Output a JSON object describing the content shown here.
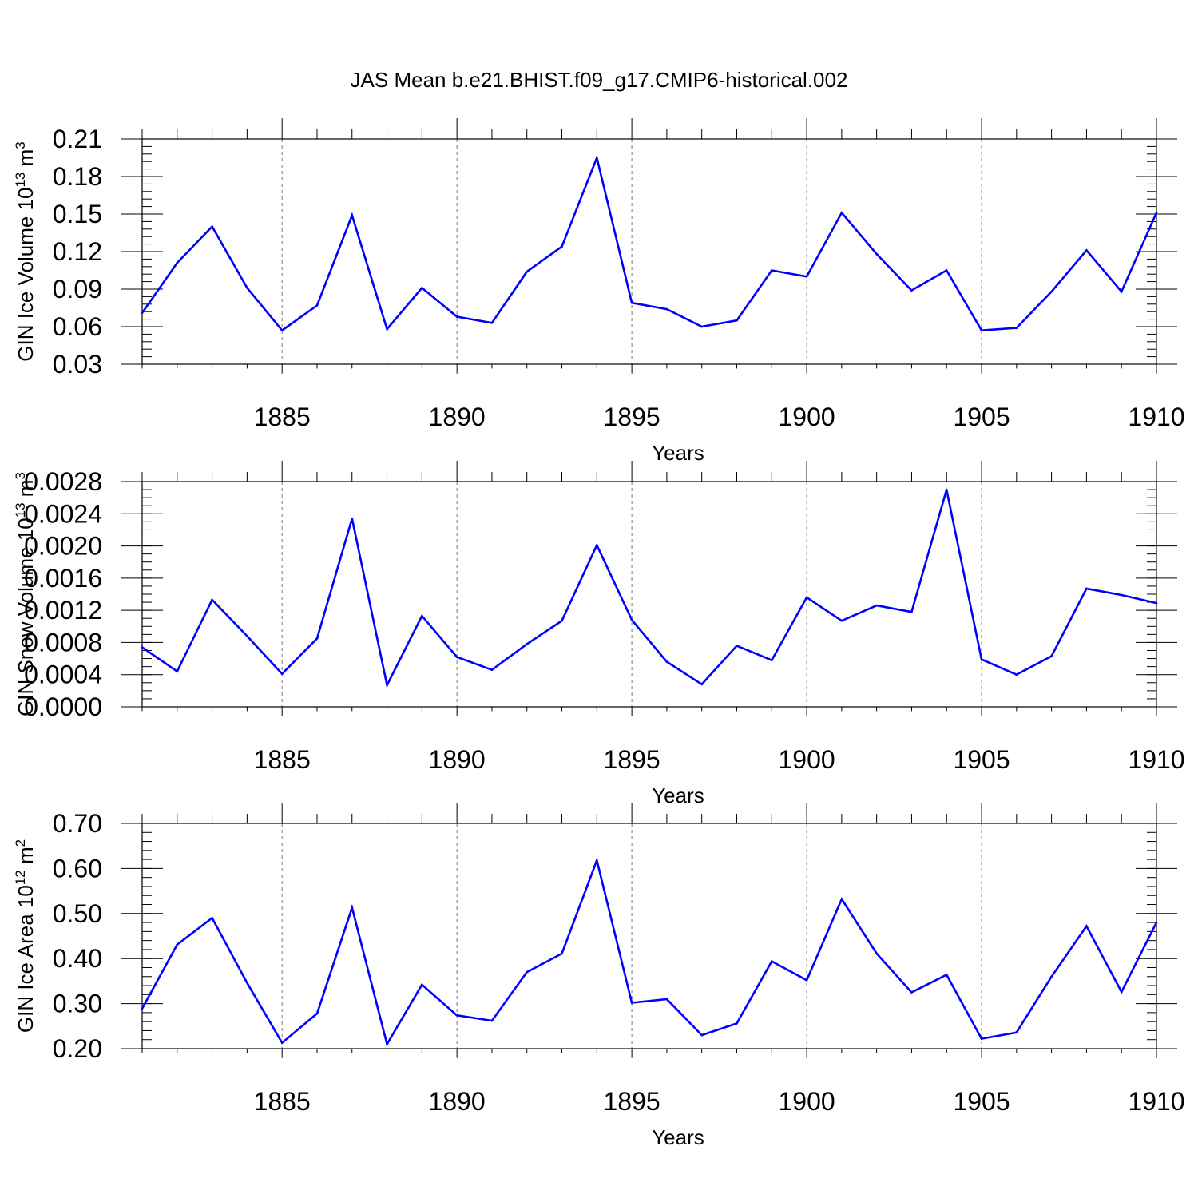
{
  "figure_title": "JAS Mean b.e21.BHIST.f09_g17.CMIP6-historical.002",
  "line_color": "#0000ff",
  "chart_data": [
    {
      "type": "line",
      "title": "JAS Mean b.e21.BHIST.f09_g17.CMIP6-historical.002",
      "ylabel": "GIN Ice Volume",
      "ylabel_unit_base": "10",
      "ylabel_unit_exp": "13",
      "ylabel_unit_tail": "m",
      "ylabel_unit_tail_exp": "3",
      "xlabel": "Years",
      "xlim": [
        1881,
        1910
      ],
      "ylim": [
        0.03,
        0.21
      ],
      "yticks": [
        "0.03",
        "0.06",
        "0.09",
        "0.12",
        "0.15",
        "0.18",
        "0.21"
      ],
      "ytick_values": [
        0.03,
        0.06,
        0.09,
        0.12,
        0.15,
        0.18,
        0.21
      ],
      "yminor_step": 0.006,
      "xticks": [
        "1885",
        "1890",
        "1895",
        "1900",
        "1905",
        "1910"
      ],
      "xtick_values": [
        1885,
        1890,
        1895,
        1900,
        1905,
        1910
      ],
      "grid": "vertical-dashed",
      "series": [
        {
          "name": "GIN Ice Volume",
          "x": [
            1881,
            1882,
            1883,
            1884,
            1885,
            1886,
            1887,
            1888,
            1889,
            1890,
            1891,
            1892,
            1893,
            1894,
            1895,
            1896,
            1897,
            1898,
            1899,
            1900,
            1901,
            1902,
            1903,
            1904,
            1905,
            1906,
            1907,
            1908,
            1909,
            1910
          ],
          "values": [
            0.071,
            0.111,
            0.14,
            0.091,
            0.057,
            0.077,
            0.149,
            0.058,
            0.091,
            0.068,
            0.063,
            0.104,
            0.124,
            0.195,
            0.079,
            0.074,
            0.06,
            0.065,
            0.105,
            0.1,
            0.151,
            0.118,
            0.089,
            0.105,
            0.057,
            0.059,
            0.088,
            0.121,
            0.088,
            0.151
          ]
        }
      ]
    },
    {
      "type": "line",
      "ylabel": "GIN Snow Volume",
      "ylabel_unit_base": "10",
      "ylabel_unit_exp": "13",
      "ylabel_unit_tail": "m",
      "ylabel_unit_tail_exp": "3",
      "xlabel": "Years",
      "xlim": [
        1881,
        1910
      ],
      "ylim": [
        0.0,
        0.0028
      ],
      "yticks": [
        "0.0000",
        "0.0004",
        "0.0008",
        "0.0012",
        "0.0016",
        "0.0020",
        "0.0024",
        "0.0028"
      ],
      "ytick_values": [
        0.0,
        0.0004,
        0.0008,
        0.0012,
        0.0016,
        0.002,
        0.0024,
        0.0028
      ],
      "yminor_step": 0.0001,
      "xticks": [
        "1885",
        "1890",
        "1895",
        "1900",
        "1905",
        "1910"
      ],
      "xtick_values": [
        1885,
        1890,
        1895,
        1900,
        1905,
        1910
      ],
      "grid": "vertical-dashed",
      "series": [
        {
          "name": "GIN Snow Volume",
          "x": [
            1881,
            1882,
            1883,
            1884,
            1885,
            1886,
            1887,
            1888,
            1889,
            1890,
            1891,
            1892,
            1893,
            1894,
            1895,
            1896,
            1897,
            1898,
            1899,
            1900,
            1901,
            1902,
            1903,
            1904,
            1905,
            1906,
            1907,
            1908,
            1909,
            1910
          ],
          "values": [
            0.00074,
            0.00044,
            0.00133,
            0.00088,
            0.00041,
            0.00085,
            0.00234,
            0.00027,
            0.00113,
            0.00062,
            0.00046,
            0.00078,
            0.00107,
            0.00201,
            0.00108,
            0.00056,
            0.00028,
            0.00076,
            0.00058,
            0.00136,
            0.00107,
            0.00126,
            0.00118,
            0.0027,
            0.00059,
            0.0004,
            0.00063,
            0.00147,
            0.00139,
            0.00129
          ]
        }
      ]
    },
    {
      "type": "line",
      "ylabel": "GIN Ice Area",
      "ylabel_unit_base": "10",
      "ylabel_unit_exp": "12",
      "ylabel_unit_tail": "m",
      "ylabel_unit_tail_exp": "2",
      "xlabel": "Years",
      "xlim": [
        1881,
        1910
      ],
      "ylim": [
        0.2,
        0.7
      ],
      "yticks": [
        "0.20",
        "0.30",
        "0.40",
        "0.50",
        "0.60",
        "0.70"
      ],
      "ytick_values": [
        0.2,
        0.3,
        0.4,
        0.5,
        0.6,
        0.7
      ],
      "yminor_step": 0.02,
      "xticks": [
        "1885",
        "1890",
        "1895",
        "1900",
        "1905",
        "1910"
      ],
      "xtick_values": [
        1885,
        1890,
        1895,
        1900,
        1905,
        1910
      ],
      "grid": "vertical-dashed",
      "series": [
        {
          "name": "GIN Ice Area",
          "x": [
            1881,
            1882,
            1883,
            1884,
            1885,
            1886,
            1887,
            1888,
            1889,
            1890,
            1891,
            1892,
            1893,
            1894,
            1895,
            1896,
            1897,
            1898,
            1899,
            1900,
            1901,
            1902,
            1903,
            1904,
            1905,
            1906,
            1907,
            1908,
            1909,
            1910
          ],
          "values": [
            0.289,
            0.431,
            0.49,
            0.346,
            0.213,
            0.278,
            0.513,
            0.21,
            0.342,
            0.274,
            0.262,
            0.37,
            0.411,
            0.618,
            0.302,
            0.31,
            0.23,
            0.256,
            0.394,
            0.352,
            0.532,
            0.411,
            0.325,
            0.364,
            0.222,
            0.236,
            0.36,
            0.472,
            0.326,
            0.48
          ]
        }
      ]
    }
  ]
}
